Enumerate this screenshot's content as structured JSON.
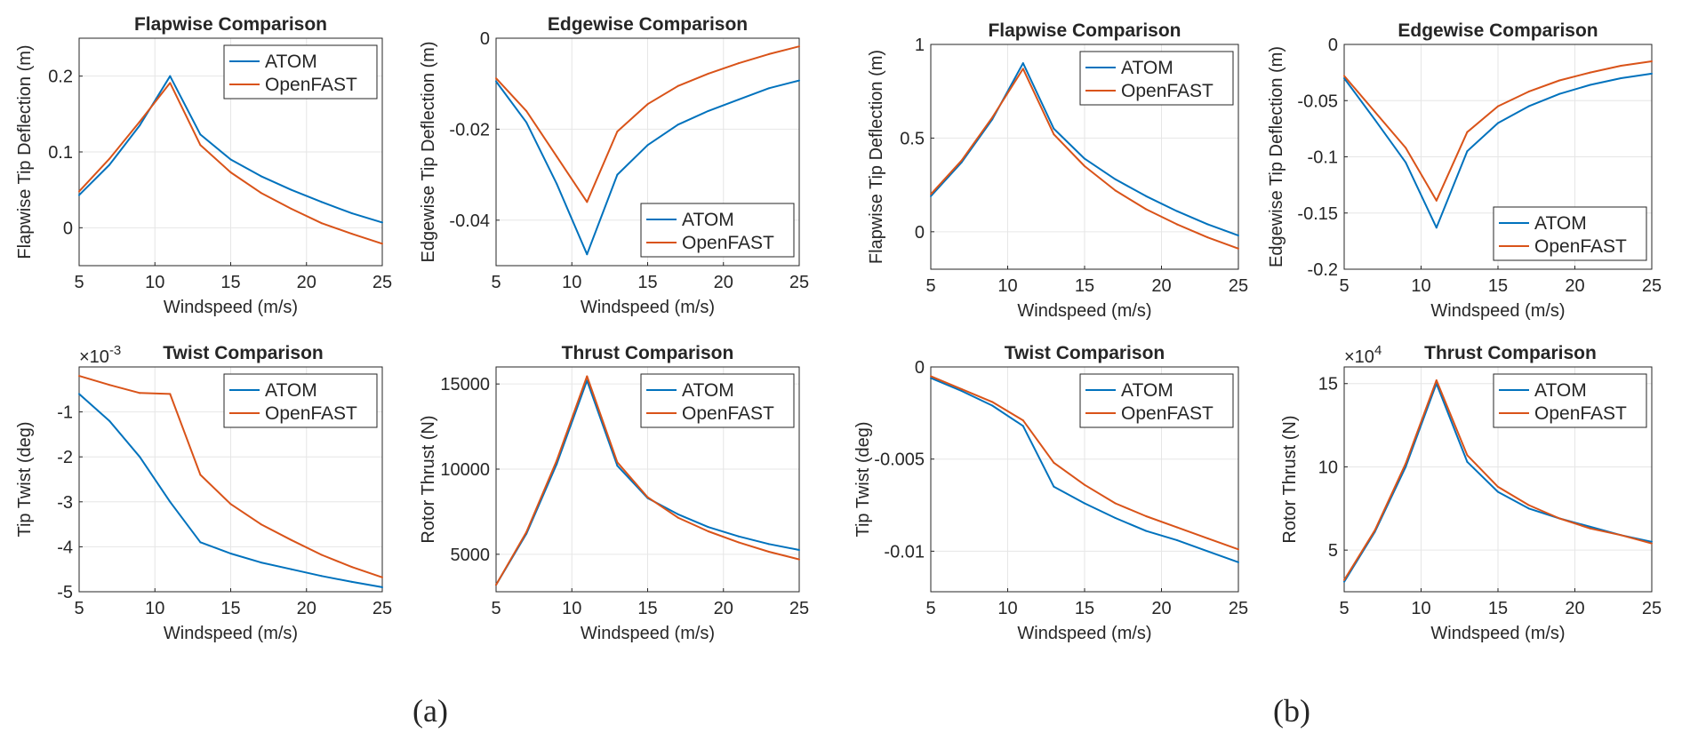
{
  "colors": {
    "atom": "#0072BD",
    "openfast": "#D95319",
    "grid": "#e6e6e6",
    "axis": "#262626"
  },
  "captions": [
    "(a)",
    "(b)"
  ],
  "chart_data": [
    {
      "id": "a1",
      "type": "line",
      "title": "Flapwise Comparison",
      "xlabel": "Windspeed (m/s)",
      "ylabel": "Flapwise Tip Deflection (m)",
      "xlim": [
        5,
        25
      ],
      "ylim": [
        -0.05,
        0.25
      ],
      "xticks": [
        5,
        10,
        15,
        20,
        25
      ],
      "xticklabels": [
        "5",
        "10",
        "15",
        "20",
        "25"
      ],
      "yticks": [
        0,
        0.1,
        0.2
      ],
      "yticklabels": [
        "0",
        "0.1",
        "0.2"
      ],
      "exponent": "",
      "legend_position": "top-right",
      "x": [
        5,
        7,
        9,
        11,
        13,
        15,
        17,
        19,
        21,
        23,
        25
      ],
      "series": [
        {
          "name": "ATOM",
          "values": [
            0.043,
            0.083,
            0.135,
            0.2,
            0.123,
            0.09,
            0.068,
            0.05,
            0.034,
            0.019,
            0.007
          ]
        },
        {
          "name": "OpenFAST",
          "values": [
            0.048,
            0.091,
            0.14,
            0.191,
            0.109,
            0.073,
            0.046,
            0.025,
            0.006,
            -0.008,
            -0.021
          ]
        }
      ]
    },
    {
      "id": "a2",
      "type": "line",
      "title": "Edgewise Comparison",
      "xlabel": "Windspeed (m/s)",
      "ylabel": "Edgewise Tip Deflection (m)",
      "xlim": [
        5,
        25
      ],
      "ylim": [
        -0.05,
        0
      ],
      "xticks": [
        5,
        10,
        15,
        20,
        25
      ],
      "xticklabels": [
        "5",
        "10",
        "15",
        "20",
        "25"
      ],
      "yticks": [
        -0.04,
        -0.02,
        0
      ],
      "yticklabels": [
        "-0.04",
        "-0.02",
        "0"
      ],
      "exponent": "",
      "legend_position": "bottom-right",
      "x": [
        5,
        7,
        9,
        11,
        13,
        15,
        17,
        19,
        21,
        23,
        25
      ],
      "series": [
        {
          "name": "ATOM",
          "values": [
            -0.0095,
            -0.0185,
            -0.032,
            -0.0475,
            -0.03,
            -0.0235,
            -0.019,
            -0.016,
            -0.0135,
            -0.011,
            -0.0093
          ]
        },
        {
          "name": "OpenFAST",
          "values": [
            -0.0088,
            -0.016,
            -0.026,
            -0.036,
            -0.0205,
            -0.0145,
            -0.0105,
            -0.0078,
            -0.0055,
            -0.0035,
            -0.0018
          ]
        }
      ]
    },
    {
      "id": "a3",
      "type": "line",
      "title": "Twist Comparison",
      "xlabel": "Windspeed (m/s)",
      "ylabel": "Tip Twist (deg)",
      "xlim": [
        5,
        25
      ],
      "ylim": [
        -5,
        0
      ],
      "xticks": [
        5,
        10,
        15,
        20,
        25
      ],
      "xticklabels": [
        "5",
        "10",
        "15",
        "20",
        "25"
      ],
      "yticks": [
        -5,
        -4,
        -3,
        -2,
        -1
      ],
      "yticklabels": [
        "-5",
        "-4",
        "-3",
        "-2",
        "-1"
      ],
      "exponent": "×10^-3",
      "legend_position": "top-right",
      "x": [
        5,
        7,
        9,
        11,
        13,
        15,
        17,
        19,
        21,
        23,
        25
      ],
      "series": [
        {
          "name": "ATOM",
          "values": [
            -0.6,
            -1.2,
            -2.0,
            -3.0,
            -3.9,
            -4.15,
            -4.35,
            -4.5,
            -4.65,
            -4.78,
            -4.9
          ]
        },
        {
          "name": "OpenFAST",
          "values": [
            -0.2,
            -0.4,
            -0.58,
            -0.6,
            -2.4,
            -3.05,
            -3.5,
            -3.85,
            -4.18,
            -4.45,
            -4.68
          ]
        }
      ]
    },
    {
      "id": "a4",
      "type": "line",
      "title": "Thrust Comparison",
      "xlabel": "Windspeed (m/s)",
      "ylabel": "Rotor Thrust (N)",
      "xlim": [
        5,
        25
      ],
      "ylim": [
        2800,
        16000
      ],
      "xticks": [
        5,
        10,
        15,
        20,
        25
      ],
      "xticklabels": [
        "5",
        "10",
        "15",
        "20",
        "25"
      ],
      "yticks": [
        5000,
        10000,
        15000
      ],
      "yticklabels": [
        "5000",
        "10000",
        "15000"
      ],
      "exponent": "",
      "legend_position": "top-right",
      "x": [
        5,
        7,
        9,
        11,
        13,
        15,
        17,
        19,
        21,
        23,
        25
      ],
      "series": [
        {
          "name": "ATOM",
          "values": [
            3200,
            6200,
            10300,
            15200,
            10200,
            8300,
            7350,
            6600,
            6050,
            5600,
            5250
          ]
        },
        {
          "name": "OpenFAST",
          "values": [
            3200,
            6300,
            10500,
            15450,
            10400,
            8350,
            7150,
            6350,
            5700,
            5150,
            4700
          ]
        }
      ]
    },
    {
      "id": "b1",
      "type": "line",
      "title": "Flapwise Comparison",
      "xlabel": "Windspeed (m/s)",
      "ylabel": "Flapwise Tip Deflection (m)",
      "xlim": [
        5,
        25
      ],
      "ylim": [
        -0.2,
        1
      ],
      "xticks": [
        5,
        10,
        15,
        20,
        25
      ],
      "xticklabels": [
        "5",
        "10",
        "15",
        "20",
        "25"
      ],
      "yticks": [
        0,
        0.5,
        1
      ],
      "yticklabels": [
        "0",
        "0.5",
        "1"
      ],
      "exponent": "",
      "legend_position": "top-right",
      "x": [
        5,
        7,
        9,
        11,
        13,
        15,
        17,
        19,
        21,
        23,
        25
      ],
      "series": [
        {
          "name": "ATOM",
          "values": [
            0.19,
            0.37,
            0.6,
            0.9,
            0.55,
            0.39,
            0.28,
            0.19,
            0.11,
            0.04,
            -0.02
          ]
        },
        {
          "name": "OpenFAST",
          "values": [
            0.2,
            0.38,
            0.61,
            0.87,
            0.52,
            0.35,
            0.22,
            0.12,
            0.04,
            -0.03,
            -0.09
          ]
        }
      ]
    },
    {
      "id": "b2",
      "type": "line",
      "title": "Edgewise Comparison",
      "xlabel": "Windspeed (m/s)",
      "ylabel": "Edgewise Tip Deflection (m)",
      "xlim": [
        5,
        25
      ],
      "ylim": [
        -0.2,
        0
      ],
      "xticks": [
        5,
        10,
        15,
        20,
        25
      ],
      "xticklabels": [
        "5",
        "10",
        "15",
        "20",
        "25"
      ],
      "yticks": [
        -0.2,
        -0.15,
        -0.1,
        -0.05,
        0
      ],
      "yticklabels": [
        "-0.2",
        "-0.15",
        "-0.1",
        "-0.05",
        "0"
      ],
      "exponent": "",
      "legend_position": "bottom-right",
      "x": [
        5,
        7,
        9,
        11,
        13,
        15,
        17,
        19,
        21,
        23,
        25
      ],
      "series": [
        {
          "name": "ATOM",
          "values": [
            -0.03,
            -0.067,
            -0.105,
            -0.163,
            -0.095,
            -0.07,
            -0.055,
            -0.044,
            -0.036,
            -0.03,
            -0.026
          ]
        },
        {
          "name": "OpenFAST",
          "values": [
            -0.028,
            -0.06,
            -0.092,
            -0.139,
            -0.078,
            -0.055,
            -0.042,
            -0.032,
            -0.025,
            -0.019,
            -0.015
          ]
        }
      ]
    },
    {
      "id": "b3",
      "type": "line",
      "title": "Twist Comparison",
      "xlabel": "Windspeed (m/s)",
      "ylabel": "Tip Twist (deg)",
      "xlim": [
        5,
        25
      ],
      "ylim": [
        -0.0122,
        0
      ],
      "xticks": [
        5,
        10,
        15,
        20,
        25
      ],
      "xticklabels": [
        "5",
        "10",
        "15",
        "20",
        "25"
      ],
      "yticks": [
        -0.01,
        -0.005,
        0
      ],
      "yticklabels": [
        "-0.01",
        "-0.005",
        "0"
      ],
      "exponent": "",
      "legend_position": "top-right",
      "x": [
        5,
        7,
        9,
        11,
        13,
        15,
        17,
        19,
        21,
        23,
        25
      ],
      "series": [
        {
          "name": "ATOM",
          "values": [
            -0.0006,
            -0.0013,
            -0.0021,
            -0.0032,
            -0.0065,
            -0.0074,
            -0.0082,
            -0.0089,
            -0.0094,
            -0.01,
            -0.0106
          ]
        },
        {
          "name": "OpenFAST",
          "values": [
            -0.0005,
            -0.0012,
            -0.0019,
            -0.0029,
            -0.0052,
            -0.0064,
            -0.0074,
            -0.0081,
            -0.0087,
            -0.0093,
            -0.0099
          ]
        }
      ]
    },
    {
      "id": "b4",
      "type": "line",
      "title": "Thrust Comparison",
      "xlabel": "Windspeed (m/s)",
      "ylabel": "Rotor Thrust (N)",
      "xlim": [
        5,
        25
      ],
      "ylim": [
        2.5,
        16
      ],
      "xticks": [
        5,
        10,
        15,
        20,
        25
      ],
      "xticklabels": [
        "5",
        "10",
        "15",
        "20",
        "25"
      ],
      "yticks": [
        5,
        10,
        15
      ],
      "yticklabels": [
        "5",
        "10",
        "15"
      ],
      "exponent": "×10^4",
      "legend_position": "top-right",
      "x": [
        5,
        7,
        9,
        11,
        13,
        15,
        17,
        19,
        21,
        23,
        25
      ],
      "series": [
        {
          "name": "ATOM",
          "values": [
            3.1,
            6.1,
            10.0,
            15.0,
            10.3,
            8.5,
            7.5,
            6.9,
            6.4,
            5.9,
            5.5
          ]
        },
        {
          "name": "OpenFAST",
          "values": [
            3.2,
            6.2,
            10.2,
            15.2,
            10.7,
            8.8,
            7.7,
            6.9,
            6.3,
            5.9,
            5.4
          ]
        }
      ]
    }
  ]
}
